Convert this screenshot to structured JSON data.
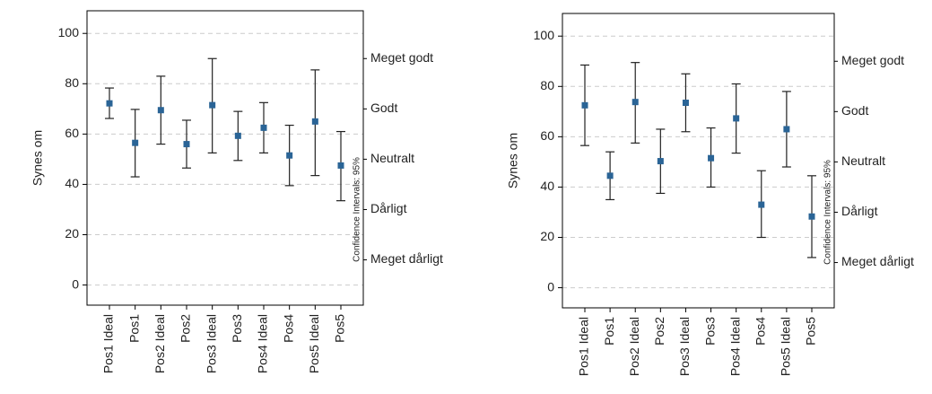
{
  "chart_data": [
    {
      "type": "errorbar",
      "ylabel": "Synes om",
      "annotation": "Confidence Intervals: 95%",
      "categories": [
        "Pos1 Ideal",
        "Pos1",
        "Pos2 Ideal",
        "Pos2",
        "Pos3 Ideal",
        "Pos3",
        "Pos4 Ideal",
        "Pos4",
        "Pos5 Ideal",
        "Pos5"
      ],
      "values": [
        72.2,
        56.5,
        69.5,
        56,
        71.5,
        59.3,
        62.5,
        51.5,
        65,
        47.5
      ],
      "lower": [
        66.2,
        43,
        56,
        46.5,
        52.5,
        49.5,
        52.5,
        39.5,
        43.5,
        33.5
      ],
      "upper": [
        78.3,
        69.8,
        83,
        65.5,
        90,
        69,
        72.5,
        63.5,
        85.5,
        61
      ],
      "color": "#2a6496",
      "ylim": [
        -8,
        109
      ],
      "yticks": [
        0,
        20,
        40,
        60,
        80,
        100
      ],
      "y2lim": [
        -8,
        109
      ],
      "y2ticks": [
        {
          "value": 10,
          "label": "Meget dårligt"
        },
        {
          "value": 30,
          "label": "Dårligt"
        },
        {
          "value": 50,
          "label": "Neutralt"
        },
        {
          "value": 70,
          "label": "Godt"
        },
        {
          "value": 90,
          "label": "Meget godt"
        }
      ],
      "grid": true
    },
    {
      "type": "errorbar",
      "ylabel": "Synes om",
      "annotation": "Confidence Intervals: 95%",
      "categories": [
        "Pos1 Ideal",
        "Pos1",
        "Pos2 Ideal",
        "Pos2",
        "Pos3 Ideal",
        "Pos3",
        "Pos4 Ideal",
        "Pos4",
        "Pos5 Ideal",
        "Pos5"
      ],
      "values": [
        72.5,
        44.5,
        73.8,
        50.3,
        73.5,
        51.5,
        67.3,
        33,
        63,
        28.3
      ],
      "lower": [
        56.5,
        35,
        57.5,
        37.5,
        62,
        40,
        53.5,
        20,
        48,
        12
      ],
      "upper": [
        88.5,
        54,
        89.5,
        63,
        85,
        63.5,
        81,
        46.5,
        78,
        44.5
      ],
      "color": "#2a6496",
      "ylim": [
        -8,
        109
      ],
      "yticks": [
        0,
        20,
        40,
        60,
        80,
        100
      ],
      "y2lim": [
        -8,
        109
      ],
      "y2ticks": [
        {
          "value": 10,
          "label": "Meget dårligt"
        },
        {
          "value": 30,
          "label": "Dårligt"
        },
        {
          "value": 50,
          "label": "Neutralt"
        },
        {
          "value": 70,
          "label": "Godt"
        },
        {
          "value": 90,
          "label": "Meget godt"
        }
      ],
      "grid": true
    }
  ]
}
